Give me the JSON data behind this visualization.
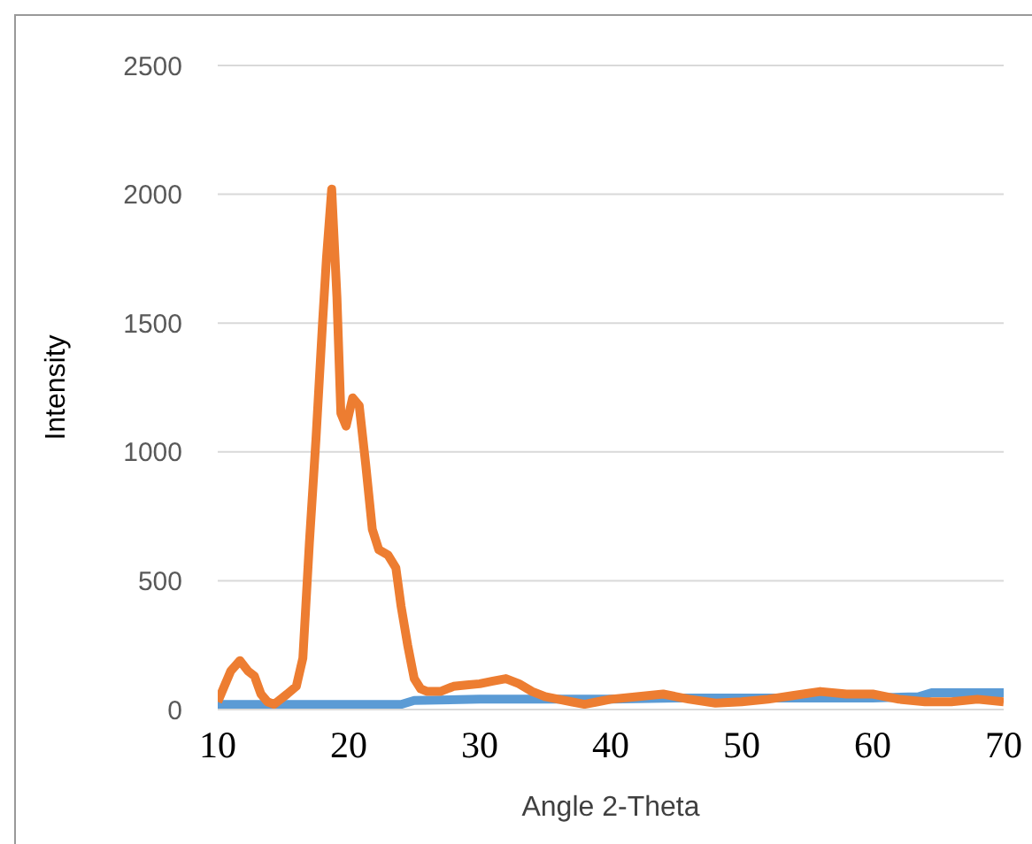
{
  "chart_data": {
    "type": "line",
    "xlabel": "Angle 2-Theta",
    "ylabel": "Intensity",
    "xlim": [
      10,
      70
    ],
    "xticks": [
      10,
      20,
      30,
      40,
      50,
      60,
      70
    ],
    "ylim": [
      0,
      2500
    ],
    "yticks": [
      0,
      500,
      1000,
      1500,
      2000,
      2500
    ],
    "grid": "y",
    "marker": "none",
    "line_style": "solid",
    "series": [
      {
        "color": "#5b9bd5",
        "x": [
          10,
          15,
          20,
          24,
          25,
          30,
          35,
          40,
          45,
          50,
          55,
          60,
          63.5,
          64.5,
          67,
          70
        ],
        "values": [
          20,
          20,
          20,
          20,
          35,
          40,
          40,
          40,
          45,
          45,
          45,
          45,
          50,
          65,
          65,
          65
        ]
      },
      {
        "color": "#ed7d31",
        "x": [
          10,
          10.5,
          11,
          11.7,
          12.3,
          12.8,
          13.3,
          13.8,
          14.3,
          14.8,
          15.3,
          16,
          16.5,
          17,
          17.5,
          18,
          18.3,
          18.7,
          19.1,
          19.4,
          19.8,
          20.3,
          20.8,
          21.3,
          21.8,
          22.3,
          23,
          23.6,
          24,
          24.5,
          25,
          25.5,
          26,
          27,
          28,
          29,
          30,
          31,
          32,
          33,
          34,
          35,
          36,
          37,
          38,
          39,
          40,
          42,
          44,
          46,
          48,
          50,
          52,
          54,
          56,
          58,
          60,
          62,
          64,
          66,
          68,
          70
        ],
        "values": [
          30,
          90,
          150,
          190,
          150,
          130,
          60,
          30,
          20,
          40,
          60,
          90,
          200,
          650,
          1050,
          1500,
          1750,
          2020,
          1600,
          1150,
          1100,
          1210,
          1180,
          950,
          700,
          620,
          600,
          550,
          400,
          250,
          120,
          80,
          70,
          70,
          90,
          95,
          100,
          110,
          120,
          100,
          70,
          50,
          40,
          30,
          20,
          30,
          40,
          50,
          60,
          40,
          25,
          30,
          40,
          55,
          70,
          60,
          60,
          40,
          30,
          30,
          40,
          30
        ]
      }
    ]
  }
}
